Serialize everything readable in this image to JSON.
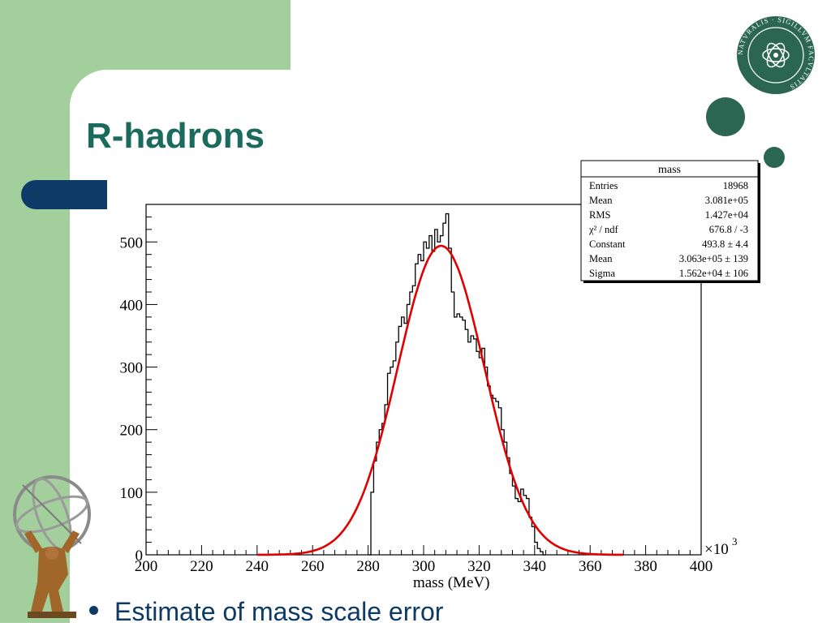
{
  "slide": {
    "title": "R-hadrons",
    "bullet": "Estimate of mass scale error",
    "colors": {
      "green_block": "#a3cf9c",
      "title": "#1b6b5c",
      "navy": "#0e3a67",
      "dots": "#2a6652",
      "fit_curve": "#e00000"
    },
    "logo_seal_text": "NATVRALIS · SIGILLVM FACVLTATIS"
  },
  "chart_data": {
    "type": "bar",
    "histogram": true,
    "xlabel": "mass (MeV)",
    "x_multiplier_label": "×10",
    "x_multiplier_exp": "3",
    "xlim": [
      200,
      400
    ],
    "ylim": [
      0,
      560
    ],
    "xticks": [
      200,
      220,
      240,
      260,
      280,
      300,
      320,
      340,
      360,
      380,
      400
    ],
    "yticks": [
      0,
      100,
      200,
      300,
      400,
      500
    ],
    "bin_width": 1,
    "x": [
      280,
      281,
      282,
      283,
      284,
      285,
      286,
      287,
      288,
      289,
      290,
      291,
      292,
      293,
      294,
      295,
      296,
      297,
      298,
      299,
      300,
      301,
      302,
      303,
      304,
      305,
      306,
      307,
      308,
      309,
      310,
      311,
      312,
      313,
      314,
      315,
      316,
      317,
      318,
      319,
      320,
      321,
      322,
      323,
      324,
      325,
      326,
      327,
      328,
      329,
      330,
      331,
      332,
      333,
      334,
      335,
      336,
      337,
      338,
      339,
      340,
      341,
      342,
      343
    ],
    "values": [
      0,
      100,
      150,
      180,
      200,
      210,
      240,
      290,
      300,
      310,
      340,
      365,
      380,
      370,
      400,
      420,
      430,
      465,
      480,
      470,
      500,
      490,
      510,
      485,
      520,
      500,
      510,
      530,
      545,
      490,
      420,
      380,
      385,
      380,
      375,
      360,
      340,
      350,
      345,
      325,
      315,
      330,
      300,
      270,
      255,
      250,
      245,
      235,
      200,
      180,
      155,
      130,
      110,
      90,
      85,
      105,
      95,
      90,
      60,
      45,
      20,
      10,
      5,
      0
    ],
    "fit": {
      "function": "gaus",
      "constant": 493.8,
      "mean": 306.3,
      "sigma": 15.62
    },
    "stats_box": {
      "title": "mass",
      "rows": [
        {
          "label": "Entries",
          "value": "18968"
        },
        {
          "label": "Mean",
          "value": "3.081e+05"
        },
        {
          "label": "RMS",
          "value": "1.427e+04"
        },
        {
          "label": "χ² / ndf",
          "value": "676.8 / -3"
        },
        {
          "label": "Constant",
          "value": "493.8 ± 4.4"
        },
        {
          "label": "Mean",
          "value": "3.063e+05 ± 139"
        },
        {
          "label": "Sigma",
          "value": "1.562e+04 ± 106"
        }
      ]
    }
  }
}
